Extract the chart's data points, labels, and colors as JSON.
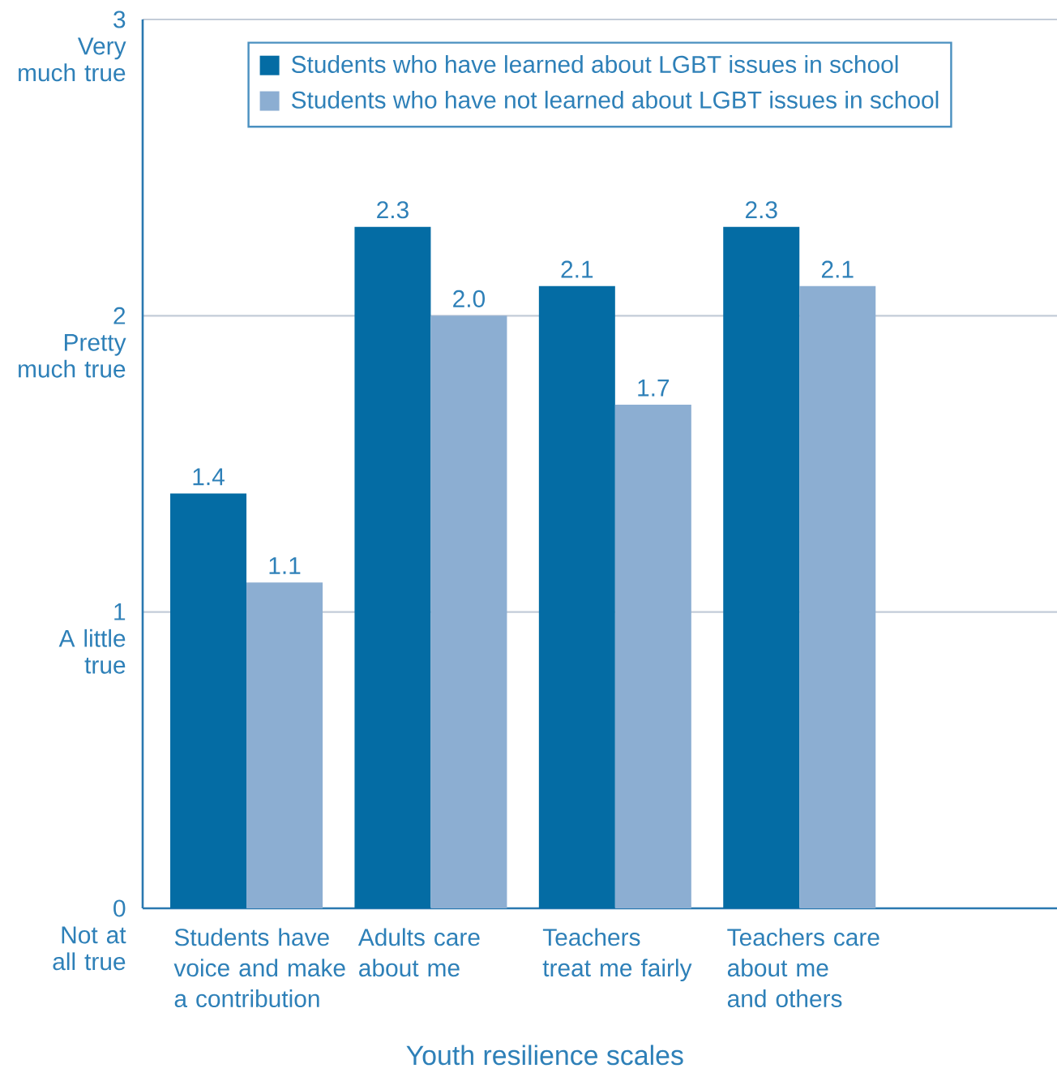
{
  "chart_data": {
    "type": "bar",
    "xlabel": "Youth resilience scales",
    "categories": [
      "Students have\nvoice and make\na contribution",
      "Adults care\nabout me",
      "Teachers\ntreat me fairly",
      "Teachers care\nabout me\nand others"
    ],
    "series": [
      {
        "name": "Students who have learned about LGBT issues in school",
        "color": "#046ca4",
        "values": [
          1.4,
          2.3,
          2.1,
          2.3
        ],
        "value_labels": [
          "1.4",
          "2.3",
          "2.1",
          "2.3"
        ]
      },
      {
        "name": "Students who have not learned about LGBT issues in school",
        "color": "#8caed2",
        "values": [
          1.1,
          2.0,
          1.7,
          2.1
        ],
        "value_labels": [
          "1.1",
          "2.0",
          "1.7",
          "2.1"
        ]
      }
    ],
    "ylim": [
      0,
      3
    ],
    "yticks": [
      {
        "value": 0,
        "label": "0\nNot at\nall true"
      },
      {
        "value": 1,
        "label": "1\nA little\ntrue"
      },
      {
        "value": 2,
        "label": "2\nPretty\nmuch true"
      },
      {
        "value": 3,
        "label": "3\nVery\nmuch true"
      }
    ],
    "grid": "y",
    "legend": "top"
  }
}
